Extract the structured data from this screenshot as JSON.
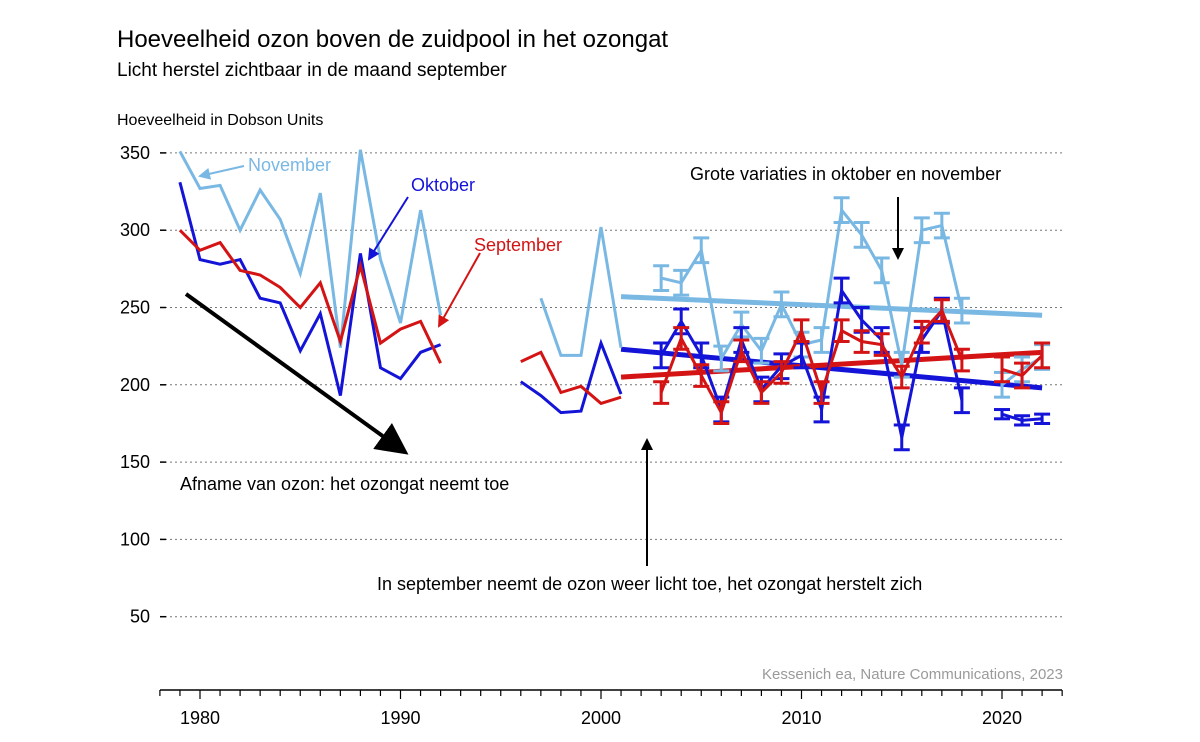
{
  "chart_data": {
    "type": "line",
    "title": "Hoeveelheid ozon boven de zuidpool in het ozongat",
    "subtitle": "Licht herstel zichtbaar in de maand september",
    "ylabel": "Hoeveelheid in Dobson Units",
    "xlabel": "",
    "ylim": [
      0,
      370
    ],
    "xlim": [
      1977,
      2023
    ],
    "yticks": [
      50,
      100,
      150,
      200,
      250,
      300,
      350
    ],
    "xticks": [
      1980,
      1990,
      2000,
      2010,
      2020
    ],
    "grid": "horizontal-dotted",
    "series": [
      {
        "name": "November",
        "color": "#7ab8e4",
        "segments": [
          {
            "x": [
              1979,
              1980,
              1981,
              1982,
              1983,
              1984,
              1985,
              1986,
              1987,
              1988,
              1989,
              1990,
              1991,
              1992
            ],
            "y": [
              351,
              327,
              329,
              300,
              326,
              307,
              272,
              324,
              224,
              352,
              281,
              240,
              313,
              245
            ]
          },
          {
            "x": [
              1997,
              1998,
              1999,
              2000,
              2001
            ],
            "y": [
              256,
              219,
              219,
              302,
              224
            ]
          },
          {
            "x": [
              2003,
              2004,
              2005,
              2006,
              2007,
              2008,
              2009,
              2010,
              2011,
              2012,
              2013,
              2014,
              2015,
              2016,
              2017,
              2018
            ],
            "y": [
              269,
              266,
              287,
              217,
              239,
              222,
              252,
              226,
              229,
              313,
              297,
              274,
              213,
              300,
              303,
              248
            ],
            "error": 8
          },
          {
            "x": [
              2020,
              2021,
              2022
            ],
            "y": [
              200,
              210,
              218
            ],
            "error": 8
          }
        ],
        "trend": {
          "x": [
            2001,
            2022
          ],
          "y": [
            257,
            245
          ]
        }
      },
      {
        "name": "Oktober",
        "color": "#1414d8",
        "segments": [
          {
            "x": [
              1979,
              1980,
              1981,
              1982,
              1983,
              1984,
              1985,
              1986,
              1987,
              1988,
              1989,
              1990,
              1991,
              1992
            ],
            "y": [
              331,
              281,
              278,
              281,
              256,
              253,
              222,
              246,
              193,
              285,
              211,
              204,
              221,
              226
            ]
          },
          {
            "x": [
              1996,
              1997,
              1998,
              1999,
              2000,
              2001
            ],
            "y": [
              202,
              193,
              182,
              183,
              227,
              194
            ]
          },
          {
            "x": [
              2003,
              2004,
              2005,
              2006,
              2007,
              2008,
              2009,
              2010,
              2011,
              2012,
              2013,
              2014,
              2015,
              2016,
              2017,
              2018
            ],
            "y": [
              219,
              241,
              219,
              184,
              229,
              197,
              212,
              219,
              184,
              261,
              242,
              229,
              166,
              229,
              248,
              190
            ],
            "error": 8
          },
          {
            "x": [
              2020,
              2021,
              2022
            ],
            "y": [
              181,
              177,
              178
            ],
            "error": 3
          }
        ],
        "trend": {
          "x": [
            2001,
            2022
          ],
          "y": [
            223,
            198
          ]
        }
      },
      {
        "name": "September",
        "color": "#d41414",
        "segments": [
          {
            "x": [
              1979,
              1980,
              1981,
              1982,
              1983,
              1984,
              1985,
              1986,
              1987,
              1988,
              1989,
              1990,
              1991,
              1992
            ],
            "y": [
              300,
              287,
              292,
              274,
              271,
              263,
              250,
              266,
              228,
              277,
              227,
              236,
              241,
              214
            ]
          },
          {
            "x": [
              1996,
              1997,
              1998,
              1999,
              2000,
              2001
            ],
            "y": [
              215,
              221,
              195,
              199,
              188,
              192
            ]
          },
          {
            "x": [
              2003,
              2004,
              2005,
              2006,
              2007,
              2008,
              2009,
              2010,
              2011,
              2012,
              2013,
              2014,
              2015,
              2016,
              2017,
              2018
            ],
            "y": [
              195,
              230,
              206,
              182,
              222,
              195,
              208,
              235,
              195,
              235,
              228,
              226,
              205,
              234,
              248,
              216
            ],
            "error": 7
          },
          {
            "x": [
              2020,
              2021,
              2022
            ],
            "y": [
              210,
              206,
              219
            ],
            "error": 8
          }
        ],
        "trend": {
          "x": [
            2001,
            2022
          ],
          "y": [
            205,
            221
          ]
        }
      }
    ],
    "annotations": {
      "decline": "Afname van ozon: het ozongat neemt toe",
      "variations": "Grote variaties in oktober en november",
      "recovery": "In september neemt de ozon weer licht toe, het ozongat herstelt zich",
      "source": "Kessenich ea, Nature Communications, 2023"
    }
  }
}
